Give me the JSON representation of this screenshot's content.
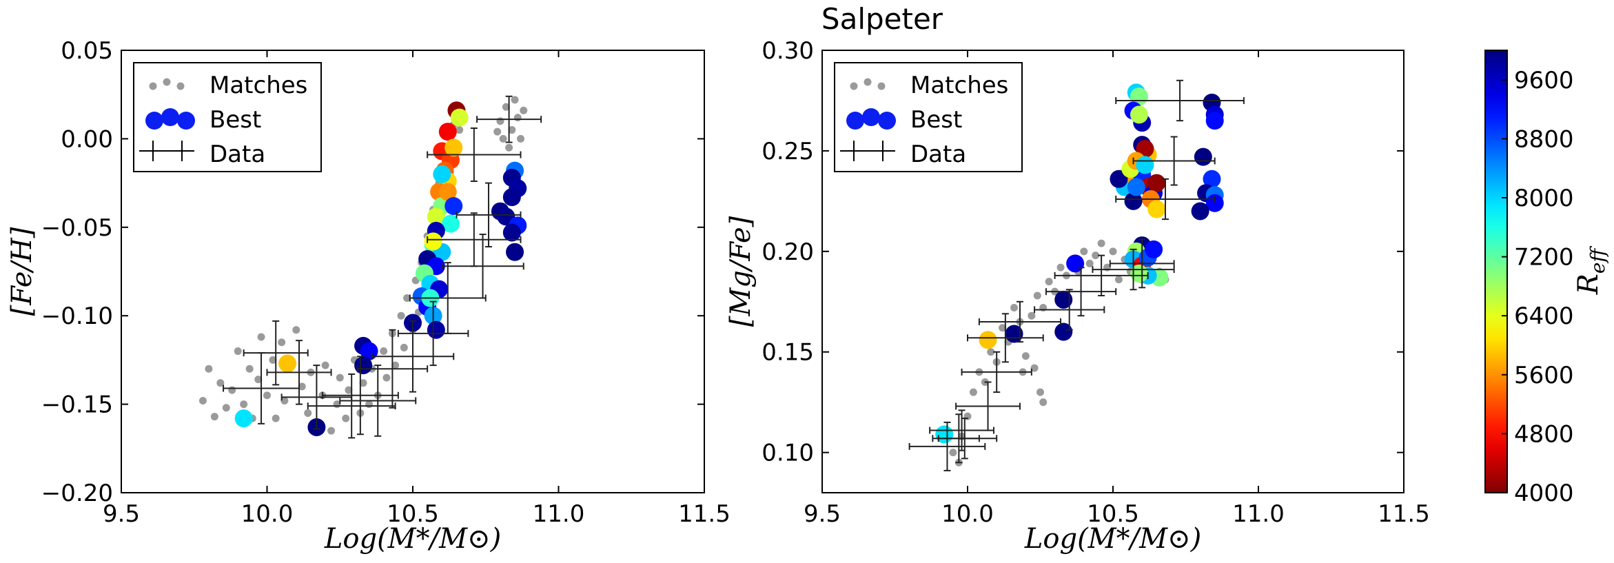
{
  "figure": {
    "title": "Salpeter"
  },
  "colors": {
    "matches": "#9a9a9a",
    "best": "#0a1ff0",
    "data": "#222222"
  },
  "chart_data": [
    {
      "type": "scatter",
      "panel": "left",
      "xlabel": "Log(M*/M⊙)",
      "ylabel": "[Fe/H]",
      "xlim": [
        9.5,
        11.5
      ],
      "ylim": [
        -0.2,
        0.05
      ],
      "xticks": [
        "9.5",
        "10.0",
        "10.5",
        "11.0",
        "11.5"
      ],
      "xtick_values": [
        9.5,
        10.0,
        10.5,
        11.0,
        11.5
      ],
      "yticks": [
        "0.05",
        "0.00",
        "−0.05",
        "−0.10",
        "−0.15",
        "−0.20"
      ],
      "ytick_values": [
        0.05,
        0.0,
        -0.05,
        -0.1,
        -0.15,
        -0.2
      ],
      "legend": {
        "position": "top-left",
        "entries": [
          "Matches",
          "Best",
          "Data"
        ]
      },
      "matches": [
        [
          9.78,
          -0.148
        ],
        [
          9.8,
          -0.13
        ],
        [
          9.82,
          -0.157
        ],
        [
          9.84,
          -0.138
        ],
        [
          9.86,
          -0.152
        ],
        [
          9.88,
          -0.142
        ],
        [
          9.9,
          -0.12
        ],
        [
          9.92,
          -0.15
        ],
        [
          9.94,
          -0.13
        ],
        [
          9.95,
          -0.158
        ],
        [
          9.97,
          -0.136
        ],
        [
          9.98,
          -0.112
        ],
        [
          10.0,
          -0.145
        ],
        [
          10.02,
          -0.125
        ],
        [
          10.03,
          -0.158
        ],
        [
          10.05,
          -0.115
        ],
        [
          10.06,
          -0.148
        ],
        [
          10.08,
          -0.128
        ],
        [
          10.1,
          -0.108
        ],
        [
          10.12,
          -0.14
        ],
        [
          10.14,
          -0.155
        ],
        [
          10.15,
          -0.132
        ],
        [
          10.17,
          -0.16
        ],
        [
          10.19,
          -0.145
        ],
        [
          10.2,
          -0.128
        ],
        [
          10.22,
          -0.165
        ],
        [
          10.24,
          -0.15
        ],
        [
          10.25,
          -0.135
        ],
        [
          10.27,
          -0.158
        ],
        [
          10.28,
          -0.142
        ],
        [
          10.3,
          -0.125
        ],
        [
          10.32,
          -0.155
        ],
        [
          10.33,
          -0.138
        ],
        [
          10.35,
          -0.15
        ],
        [
          10.36,
          -0.13
        ],
        [
          10.38,
          -0.145
        ],
        [
          10.4,
          -0.12
        ],
        [
          10.41,
          -0.135
        ],
        [
          10.43,
          -0.11
        ],
        [
          10.44,
          -0.128
        ],
        [
          10.46,
          -0.1
        ],
        [
          10.47,
          -0.118
        ],
        [
          10.48,
          -0.09
        ],
        [
          10.5,
          -0.108
        ],
        [
          10.51,
          -0.08
        ],
        [
          10.52,
          -0.098
        ],
        [
          10.53,
          -0.07
        ],
        [
          10.54,
          -0.085
        ],
        [
          10.55,
          -0.055
        ],
        [
          10.56,
          -0.065
        ],
        [
          10.57,
          -0.04
        ],
        [
          10.58,
          -0.05
        ],
        [
          10.59,
          -0.025
        ],
        [
          10.6,
          -0.035
        ],
        [
          10.61,
          -0.01
        ],
        [
          10.62,
          -0.02
        ],
        [
          10.63,
          0.0
        ],
        [
          10.64,
          0.008
        ],
        [
          10.65,
          0.015
        ],
        [
          10.66,
          0.005
        ],
        [
          10.8,
          0.01
        ],
        [
          10.82,
          0.018
        ],
        [
          10.84,
          0.005
        ],
        [
          10.85,
          0.022
        ],
        [
          10.86,
          0.012
        ],
        [
          10.87,
          0.0
        ],
        [
          10.88,
          0.016
        ],
        [
          10.83,
          -0.005
        ],
        [
          10.81,
          0.0
        ],
        [
          10.79,
          0.004
        ]
      ],
      "best": [
        [
          10.65,
          0.016,
          4100
        ],
        [
          10.62,
          0.004,
          4700
        ],
        [
          10.66,
          0.012,
          6500
        ],
        [
          10.6,
          -0.007,
          4900
        ],
        [
          10.63,
          -0.012,
          5100
        ],
        [
          10.61,
          -0.018,
          5300
        ],
        [
          10.62,
          -0.024,
          6000
        ],
        [
          10.59,
          -0.03,
          5500
        ],
        [
          10.64,
          -0.005,
          5900
        ],
        [
          10.6,
          -0.038,
          7000
        ],
        [
          10.58,
          -0.044,
          6500
        ],
        [
          10.63,
          -0.048,
          7600
        ],
        [
          10.58,
          -0.052,
          9700
        ],
        [
          10.57,
          -0.06,
          7300
        ],
        [
          10.6,
          -0.064,
          8100
        ],
        [
          10.55,
          -0.068,
          9900
        ],
        [
          10.58,
          -0.072,
          9300
        ],
        [
          10.54,
          -0.076,
          7100
        ],
        [
          10.56,
          -0.082,
          8000
        ],
        [
          10.59,
          -0.085,
          9500
        ],
        [
          10.53,
          -0.089,
          8700
        ],
        [
          10.55,
          -0.095,
          9200
        ],
        [
          10.57,
          -0.1,
          8300
        ],
        [
          10.58,
          -0.108,
          9800
        ],
        [
          10.5,
          -0.104,
          9900
        ],
        [
          10.6,
          -0.02,
          8000
        ],
        [
          10.62,
          -0.03,
          5600
        ],
        [
          10.57,
          -0.058,
          6300
        ],
        [
          10.85,
          -0.018,
          8600
        ],
        [
          10.84,
          -0.022,
          9900
        ],
        [
          10.86,
          -0.028,
          9800
        ],
        [
          10.84,
          -0.033,
          9900
        ],
        [
          10.8,
          -0.041,
          9950
        ],
        [
          10.82,
          -0.044,
          9900
        ],
        [
          10.86,
          -0.049,
          9100
        ],
        [
          10.84,
          -0.053,
          9900
        ],
        [
          10.85,
          -0.064,
          9950
        ],
        [
          10.33,
          -0.117,
          9900
        ],
        [
          10.35,
          -0.12,
          9300
        ],
        [
          10.33,
          -0.128,
          9950
        ],
        [
          10.17,
          -0.163,
          9990
        ],
        [
          9.92,
          -0.158,
          7900
        ],
        [
          10.07,
          -0.127,
          5900
        ],
        [
          10.64,
          -0.038,
          9000
        ],
        [
          10.56,
          -0.09,
          7500
        ]
      ],
      "data_points": [
        {
          "x": 10.83,
          "y": 0.011,
          "xerr": 0.11,
          "yerr": 0.013
        },
        {
          "x": 10.71,
          "y": -0.009,
          "xerr": 0.16,
          "yerr": 0.015
        },
        {
          "x": 10.76,
          "y": -0.043,
          "xerr": 0.11,
          "yerr": 0.018
        },
        {
          "x": 10.71,
          "y": -0.057,
          "xerr": 0.16,
          "yerr": 0.015
        },
        {
          "x": 10.74,
          "y": -0.072,
          "xerr": 0.14,
          "yerr": 0.018
        },
        {
          "x": 10.62,
          "y": -0.09,
          "xerr": 0.13,
          "yerr": 0.02
        },
        {
          "x": 10.57,
          "y": -0.11,
          "xerr": 0.12,
          "yerr": 0.018
        },
        {
          "x": 10.5,
          "y": -0.123,
          "xerr": 0.14,
          "yerr": 0.02
        },
        {
          "x": 10.43,
          "y": -0.13,
          "xerr": 0.12,
          "yerr": 0.022
        },
        {
          "x": 10.03,
          "y": -0.121,
          "xerr": 0.11,
          "yerr": 0.018
        },
        {
          "x": 10.11,
          "y": -0.132,
          "xerr": 0.11,
          "yerr": 0.018
        },
        {
          "x": 9.98,
          "y": -0.141,
          "xerr": 0.13,
          "yerr": 0.02
        },
        {
          "x": 10.17,
          "y": -0.146,
          "xerr": 0.12,
          "yerr": 0.018
        },
        {
          "x": 10.29,
          "y": -0.151,
          "xerr": 0.15,
          "yerr": 0.018
        },
        {
          "x": 10.32,
          "y": -0.145,
          "xerr": 0.13,
          "yerr": 0.022
        },
        {
          "x": 10.38,
          "y": -0.148,
          "xerr": 0.13,
          "yerr": 0.02
        }
      ]
    },
    {
      "type": "scatter",
      "panel": "right",
      "xlabel": "Log(M*/M⊙)",
      "ylabel": "[Mg/Fe]",
      "xlim": [
        9.5,
        11.5
      ],
      "ylim": [
        0.08,
        0.3
      ],
      "xticks": [
        "9.5",
        "10.0",
        "10.5",
        "11.0",
        "11.5"
      ],
      "xtick_values": [
        9.5,
        10.0,
        10.5,
        11.0,
        11.5
      ],
      "yticks": [
        "0.30",
        "0.25",
        "0.20",
        "0.15",
        "0.10"
      ],
      "ytick_values": [
        0.3,
        0.25,
        0.2,
        0.15,
        0.1
      ],
      "legend": {
        "position": "top-left",
        "entries": [
          "Matches",
          "Best",
          "Data"
        ]
      },
      "colorbar": {
        "label": "R_eff",
        "range": [
          4000,
          10000
        ],
        "ticks": [
          "4000",
          "4800",
          "5600",
          "6400",
          "7200",
          "8000",
          "8800",
          "9600"
        ],
        "tick_values": [
          4000,
          4800,
          5600,
          6400,
          7200,
          8000,
          8800,
          9600
        ]
      },
      "matches": [
        [
          9.95,
          0.1
        ],
        [
          9.97,
          0.095
        ],
        [
          9.98,
          0.108
        ],
        [
          10.0,
          0.118
        ],
        [
          10.02,
          0.13
        ],
        [
          10.04,
          0.14
        ],
        [
          10.06,
          0.135
        ],
        [
          10.08,
          0.15
        ],
        [
          10.1,
          0.145
        ],
        [
          10.12,
          0.162
        ],
        [
          10.14,
          0.155
        ],
        [
          10.16,
          0.172
        ],
        [
          10.18,
          0.165
        ],
        [
          10.19,
          0.14
        ],
        [
          10.2,
          0.148
        ],
        [
          10.22,
          0.168
        ],
        [
          10.24,
          0.178
        ],
        [
          10.25,
          0.13
        ],
        [
          10.26,
          0.172
        ],
        [
          10.28,
          0.185
        ],
        [
          10.3,
          0.18
        ],
        [
          10.32,
          0.192
        ],
        [
          10.34,
          0.188
        ],
        [
          10.36,
          0.196
        ],
        [
          10.38,
          0.19
        ],
        [
          10.4,
          0.2
        ],
        [
          10.42,
          0.194
        ],
        [
          10.44,
          0.198
        ],
        [
          10.46,
          0.204
        ],
        [
          10.48,
          0.192
        ],
        [
          10.5,
          0.2
        ],
        [
          10.52,
          0.186
        ],
        [
          10.54,
          0.196
        ],
        [
          10.56,
          0.19
        ],
        [
          10.58,
          0.202
        ],
        [
          10.6,
          0.186
        ],
        [
          10.62,
          0.194
        ],
        [
          10.64,
          0.2
        ],
        [
          10.66,
          0.19
        ],
        [
          10.68,
          0.186
        ],
        [
          10.26,
          0.125
        ],
        [
          10.23,
          0.142
        ]
      ],
      "best": [
        [
          10.58,
          0.279,
          8000
        ],
        [
          10.59,
          0.277,
          7000
        ],
        [
          10.57,
          0.27,
          9200
        ],
        [
          10.6,
          0.264,
          9700
        ],
        [
          10.59,
          0.268,
          6700
        ],
        [
          10.6,
          0.253,
          9950
        ],
        [
          10.62,
          0.248,
          5900
        ],
        [
          10.61,
          0.251,
          4200
        ],
        [
          10.57,
          0.242,
          9950
        ],
        [
          10.55,
          0.238,
          6600
        ],
        [
          10.56,
          0.234,
          9300
        ],
        [
          10.54,
          0.232,
          8100
        ],
        [
          10.58,
          0.236,
          5700
        ],
        [
          10.6,
          0.238,
          9000
        ],
        [
          10.62,
          0.232,
          4300
        ],
        [
          10.64,
          0.229,
          9500
        ],
        [
          10.65,
          0.234,
          4100
        ],
        [
          10.63,
          0.226,
          5500
        ],
        [
          10.57,
          0.225,
          9990
        ],
        [
          10.65,
          0.221,
          6000
        ],
        [
          10.52,
          0.236,
          9950
        ],
        [
          10.56,
          0.241,
          6500
        ],
        [
          10.58,
          0.245,
          5700
        ],
        [
          10.61,
          0.243,
          8000
        ],
        [
          10.6,
          0.203,
          9950
        ],
        [
          10.58,
          0.2,
          6800
        ],
        [
          10.57,
          0.196,
          8200
        ],
        [
          10.6,
          0.193,
          4700
        ],
        [
          10.62,
          0.197,
          8800
        ],
        [
          10.64,
          0.201,
          9200
        ],
        [
          10.66,
          0.187,
          7000
        ],
        [
          10.62,
          0.188,
          8100
        ],
        [
          10.59,
          0.189,
          6900
        ],
        [
          10.84,
          0.274,
          9990
        ],
        [
          10.85,
          0.268,
          9500
        ],
        [
          10.85,
          0.265,
          9200
        ],
        [
          10.81,
          0.247,
          9990
        ],
        [
          10.84,
          0.236,
          9000
        ],
        [
          10.82,
          0.229,
          9900
        ],
        [
          10.85,
          0.228,
          8600
        ],
        [
          10.85,
          0.224,
          9300
        ],
        [
          10.8,
          0.22,
          9950
        ],
        [
          10.37,
          0.194,
          9300
        ],
        [
          10.33,
          0.176,
          9990
        ],
        [
          10.33,
          0.16,
          9950
        ],
        [
          10.16,
          0.159,
          9990
        ],
        [
          10.07,
          0.156,
          5900
        ],
        [
          9.92,
          0.109,
          7900
        ],
        [
          10.58,
          0.232,
          8600
        ]
      ],
      "data_points": [
        {
          "x": 10.73,
          "y": 0.275,
          "xerr": 0.22,
          "yerr": 0.01
        },
        {
          "x": 10.71,
          "y": 0.245,
          "xerr": 0.14,
          "yerr": 0.012
        },
        {
          "x": 10.68,
          "y": 0.226,
          "xerr": 0.17,
          "yerr": 0.01
        },
        {
          "x": 10.6,
          "y": 0.194,
          "xerr": 0.11,
          "yerr": 0.012
        },
        {
          "x": 10.57,
          "y": 0.191,
          "xerr": 0.14,
          "yerr": 0.01
        },
        {
          "x": 10.46,
          "y": 0.188,
          "xerr": 0.16,
          "yerr": 0.01
        },
        {
          "x": 10.39,
          "y": 0.18,
          "xerr": 0.12,
          "yerr": 0.012
        },
        {
          "x": 10.35,
          "y": 0.171,
          "xerr": 0.12,
          "yerr": 0.01
        },
        {
          "x": 10.18,
          "y": 0.165,
          "xerr": 0.14,
          "yerr": 0.01
        },
        {
          "x": 10.13,
          "y": 0.157,
          "xerr": 0.13,
          "yerr": 0.012
        },
        {
          "x": 10.1,
          "y": 0.14,
          "xerr": 0.12,
          "yerr": 0.01
        },
        {
          "x": 10.07,
          "y": 0.123,
          "xerr": 0.11,
          "yerr": 0.012
        },
        {
          "x": 9.99,
          "y": 0.107,
          "xerr": 0.11,
          "yerr": 0.01
        },
        {
          "x": 9.98,
          "y": 0.111,
          "xerr": 0.11,
          "yerr": 0.01
        },
        {
          "x": 9.97,
          "y": 0.107,
          "xerr": 0.07,
          "yerr": 0.012
        },
        {
          "x": 9.93,
          "y": 0.103,
          "xerr": 0.13,
          "yerr": 0.012
        }
      ]
    }
  ]
}
